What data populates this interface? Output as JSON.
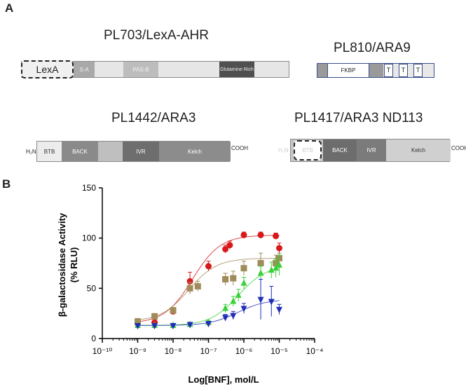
{
  "panel_a": {
    "letter": "A",
    "constructs": {
      "lexa_ahr": {
        "title": "PL703/LexA-AHR",
        "lexa": "LexA",
        "pas_a": "S-A",
        "pas_b": "PAS-B",
        "glutamine": "Glutamine Rich"
      },
      "ara9": {
        "title": "PL810/ARA9",
        "fkbp": "FKBP",
        "t1": "T",
        "t2": "T",
        "t3": "T"
      },
      "ara3": {
        "title": "PL1442/ARA3",
        "n_term": "H₂N",
        "btb": "BTB",
        "back": "BACK",
        "ivr": "IVR",
        "kelch": "Kelch",
        "c_term": "COOH"
      },
      "ara3_nd113": {
        "title": "PL1417/ARA3 ND113",
        "n_term": "H₂N",
        "btb": "BTB",
        "back": "BACK",
        "ivr": "IVR",
        "kelch": "Kelch",
        "c_term": "COOH"
      }
    }
  },
  "panel_b": {
    "letter": "B"
  },
  "colors": {
    "red": "#d7191c",
    "olive": "#a08c5a",
    "green": "#3ad13a",
    "blue": "#1f2db8"
  },
  "chart_data": {
    "type": "scatter",
    "xlabel": "Log[BNF], mol/L",
    "ylabel": "β-galactosidase Activity",
    "ylabel2": "(% RLU)",
    "x_scale": "log",
    "xlim": [
      1e-10,
      0.0001
    ],
    "ylim": [
      0,
      150
    ],
    "x_tick_labels": [
      "10⁻¹⁰",
      "10⁻⁹",
      "10⁻⁸",
      "10⁻⁷",
      "10⁻⁶",
      "10⁻⁵",
      "10⁻⁴"
    ],
    "y_tick_labels": [
      "0",
      "50",
      "100",
      "150"
    ],
    "y_ticks": [
      0,
      50,
      100,
      150
    ],
    "grid": false,
    "series": [
      {
        "color": "red",
        "marker": "circle",
        "x": [
          1e-09,
          3e-09,
          1e-08,
          3e-08,
          1e-07,
          3e-07,
          4e-07,
          1e-06,
          3e-06,
          8e-06,
          1e-05
        ],
        "y": [
          15,
          16,
          27,
          57,
          72,
          89,
          93,
          103,
          103,
          102,
          90
        ],
        "err": [
          4,
          3,
          3,
          9,
          5,
          4,
          4,
          3,
          3,
          3,
          5
        ]
      },
      {
        "color": "olive",
        "marker": "square",
        "x": [
          1e-09,
          3e-09,
          1e-08,
          3e-08,
          5e-08,
          3e-07,
          5e-07,
          1e-06,
          3e-06,
          8e-06,
          1e-05
        ],
        "y": [
          17,
          22,
          28,
          50,
          52,
          59,
          60,
          70,
          75,
          75,
          80
        ],
        "err": [
          3,
          3,
          3,
          6,
          5,
          6,
          7,
          7,
          10,
          8,
          5
        ]
      },
      {
        "color": "green",
        "marker": "triangle-up",
        "x": [
          1e-09,
          3e-09,
          1e-08,
          3e-08,
          1e-07,
          3e-07,
          5e-07,
          7e-07,
          1e-06,
          3e-06,
          6e-06,
          8e-06,
          1e-05
        ],
        "y": [
          13,
          13,
          13,
          14,
          16,
          30,
          37,
          43,
          55,
          65,
          68,
          70,
          73
        ],
        "err": [
          2,
          2,
          2,
          2,
          2,
          4,
          5,
          6,
          6,
          7,
          8,
          9,
          10
        ]
      },
      {
        "color": "blue",
        "marker": "triangle-down",
        "x": [
          1e-09,
          3e-09,
          1e-08,
          3e-08,
          1e-07,
          3e-07,
          5e-07,
          1e-06,
          3e-06,
          6e-06,
          1e-05
        ],
        "y": [
          13,
          13,
          13,
          14,
          15,
          21,
          23,
          30,
          39,
          37,
          29
        ],
        "err": [
          2,
          2,
          2,
          2,
          2,
          3,
          4,
          5,
          20,
          15,
          5
        ]
      }
    ]
  }
}
